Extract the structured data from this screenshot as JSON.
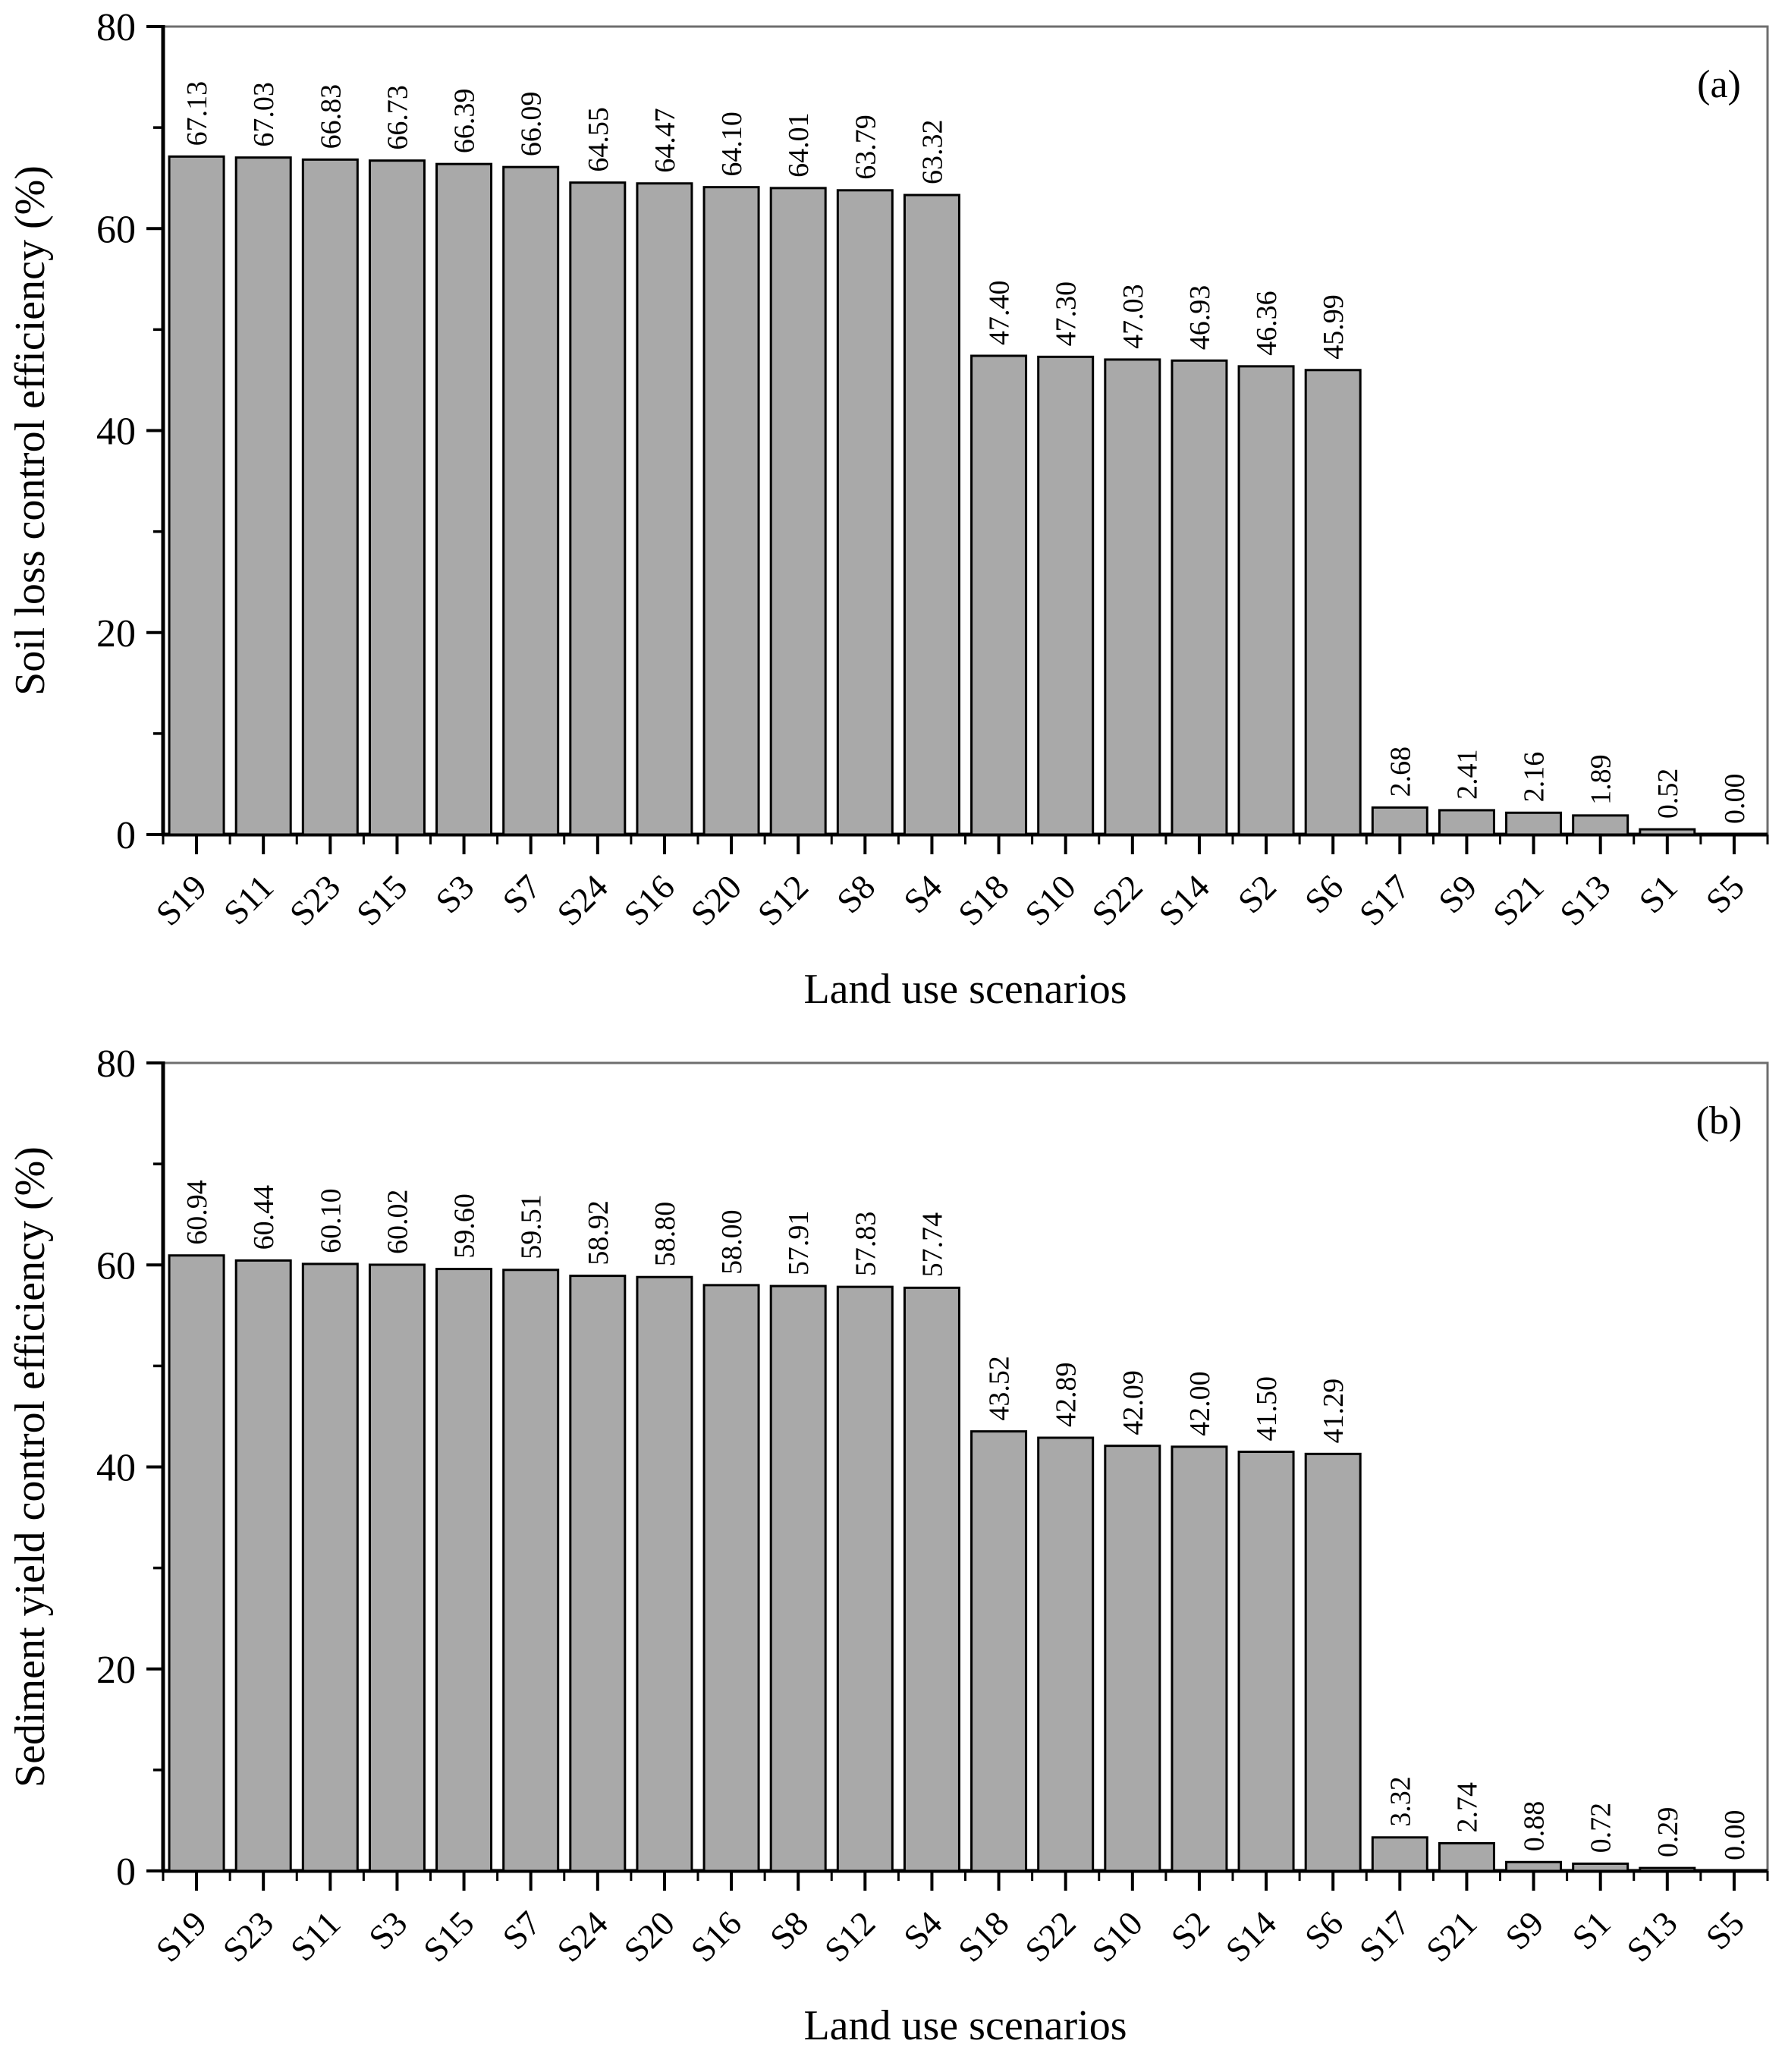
{
  "theme": {
    "background": "#ffffff",
    "bar_fill": "#a9a9a9",
    "bar_stroke": "#000000",
    "axis_color": "#000000",
    "frame_color": "#6e6e6e",
    "text_color": "#000000"
  },
  "chart_data": [
    {
      "type": "bar",
      "panel_label": "(a)",
      "title": "",
      "xlabel": "Land use scenarios",
      "ylabel": "Soil loss control efficiency (%)",
      "ylim": [
        0,
        80
      ],
      "yticks_major": [
        0,
        20,
        40,
        60,
        80
      ],
      "yticks_minor": [
        10,
        30,
        50,
        70
      ],
      "grid": false,
      "legend": false,
      "value_decimals": 2,
      "categories": [
        "S19",
        "S11",
        "S23",
        "S15",
        "S3",
        "S7",
        "S24",
        "S16",
        "S20",
        "S12",
        "S8",
        "S4",
        "S18",
        "S10",
        "S22",
        "S14",
        "S2",
        "S6",
        "S17",
        "S9",
        "S21",
        "S13",
        "S1",
        "S5"
      ],
      "values": [
        67.13,
        67.03,
        66.83,
        66.73,
        66.39,
        66.09,
        64.55,
        64.47,
        64.1,
        64.01,
        63.79,
        63.32,
        47.4,
        47.3,
        47.03,
        46.93,
        46.36,
        45.99,
        2.68,
        2.41,
        2.16,
        1.89,
        0.52,
        0.0
      ],
      "value_labels": [
        "67.13",
        "67.03",
        "66.83",
        "66.73",
        "66.39",
        "66.09",
        "64.55",
        "64.47",
        "64.10",
        "64.01",
        "63.79",
        "63.32",
        "47.40",
        "47.30",
        "47.03",
        "46.93",
        "46.36",
        "45.99",
        "2.68",
        "2.41",
        "2.16",
        "1.89",
        "0.52",
        "0.00"
      ]
    },
    {
      "type": "bar",
      "panel_label": "(b)",
      "title": "",
      "xlabel": "Land use scenarios",
      "ylabel": "Sediment yield control efficiency (%)",
      "ylim": [
        0,
        80
      ],
      "yticks_major": [
        0,
        20,
        40,
        60,
        80
      ],
      "yticks_minor": [
        10,
        30,
        50,
        70
      ],
      "grid": false,
      "legend": false,
      "value_decimals": 2,
      "categories": [
        "S19",
        "S23",
        "S11",
        "S3",
        "S15",
        "S7",
        "S24",
        "S20",
        "S16",
        "S8",
        "S12",
        "S4",
        "S18",
        "S22",
        "S10",
        "S2",
        "S14",
        "S6",
        "S17",
        "S21",
        "S9",
        "S1",
        "S13",
        "S5"
      ],
      "values": [
        60.94,
        60.44,
        60.1,
        60.02,
        59.6,
        59.51,
        58.92,
        58.8,
        58.0,
        57.91,
        57.83,
        57.74,
        43.52,
        42.89,
        42.09,
        42.0,
        41.5,
        41.29,
        3.32,
        2.74,
        0.88,
        0.72,
        0.29,
        0.0
      ],
      "value_labels": [
        "60.94",
        "60.44",
        "60.10",
        "60.02",
        "59.60",
        "59.51",
        "58.92",
        "58.80",
        "58.00",
        "57.91",
        "57.83",
        "57.74",
        "43.52",
        "42.89",
        "42.09",
        "42.00",
        "41.50",
        "41.29",
        "3.32",
        "2.74",
        "0.88",
        "0.72",
        "0.29",
        "0.00"
      ]
    }
  ]
}
